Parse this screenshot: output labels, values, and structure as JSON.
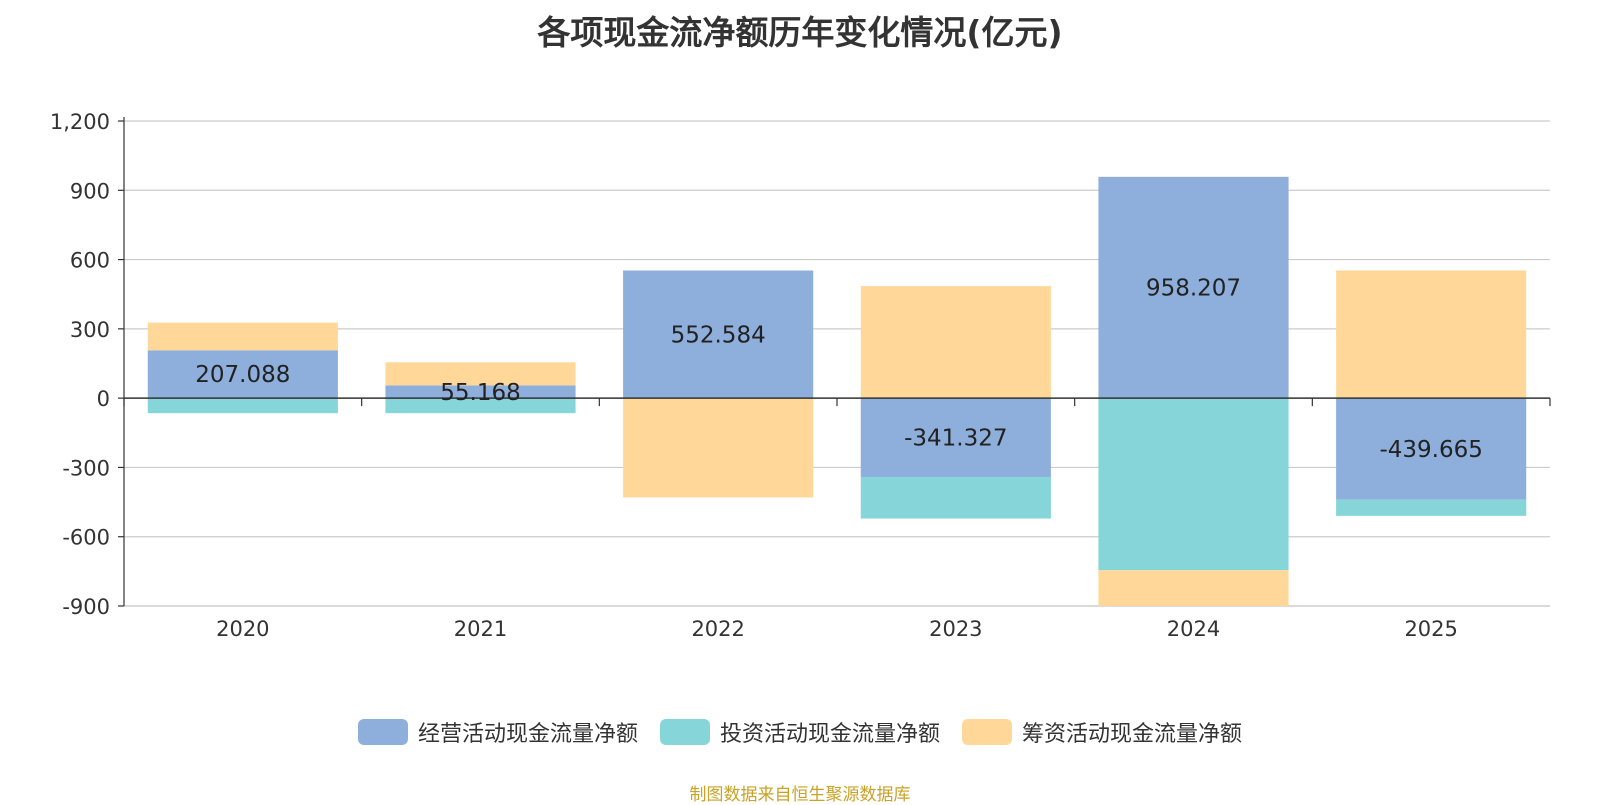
{
  "chart_data": {
    "type": "bar",
    "stacked": true,
    "title": "各项现金流净额历年变化情况(亿元)",
    "categories": [
      "2020",
      "2021",
      "2022",
      "2023",
      "2024",
      "2025"
    ],
    "series": [
      {
        "name": "经营活动现金流量净额",
        "color": "#8eaedb",
        "values": [
          207.088,
          55.168,
          552.584,
          -341.327,
          958.207,
          -439.665
        ],
        "labels": [
          "207.088",
          "55.168",
          "552.584",
          "-341.327",
          "958.207",
          "-439.665"
        ]
      },
      {
        "name": "投资活动现金流量净额",
        "color": "#86d5d8",
        "values": [
          -65,
          -65,
          0,
          -180,
          -745,
          -70
        ]
      },
      {
        "name": "筹资活动现金流量净额",
        "color": "#ffd899",
        "values": [
          120,
          100,
          -430,
          485,
          -155,
          553
        ]
      }
    ],
    "ylim": [
      -900,
      1200
    ],
    "yticks": [
      -900,
      -600,
      -300,
      0,
      300,
      600,
      900,
      1200
    ],
    "ytick_labels": [
      "-900",
      "-600",
      "-300",
      "0",
      "300",
      "600",
      "900",
      "1,200"
    ],
    "grid": true,
    "legend_position": "bottom"
  },
  "source_text": "制图数据来自恒生聚源数据库"
}
